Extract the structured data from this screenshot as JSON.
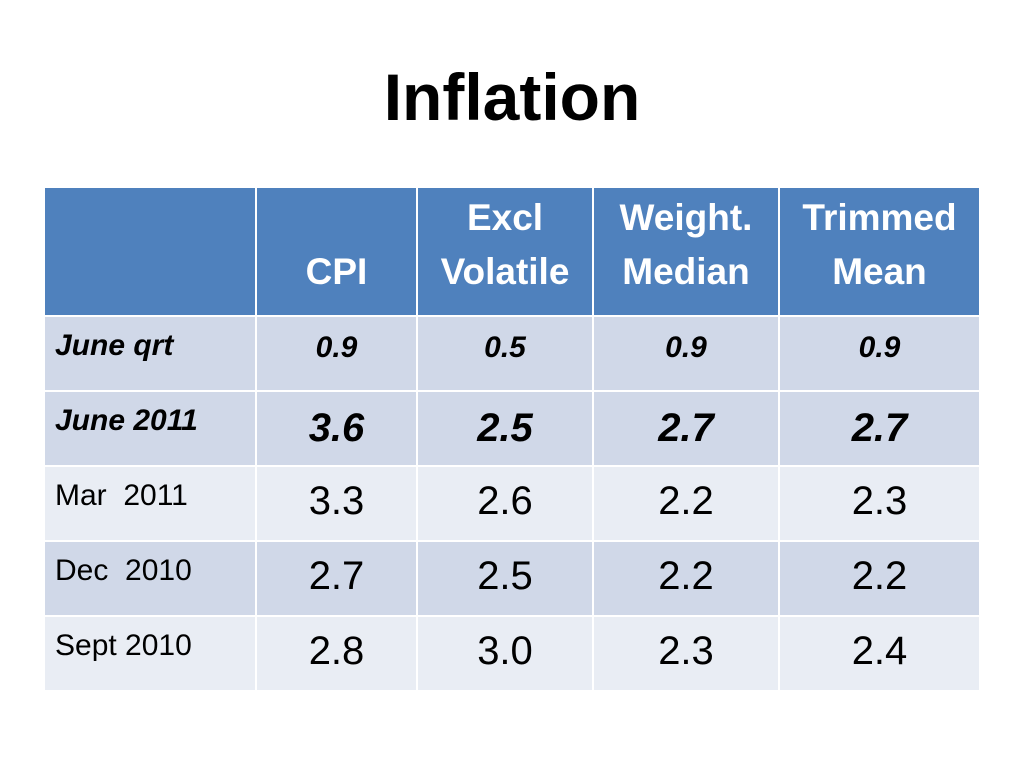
{
  "slide": {
    "title": "Inflation"
  },
  "table": {
    "headers": [
      [],
      [
        "",
        "CPI"
      ],
      [
        "Excl",
        "Volatile"
      ],
      [
        "Weight.",
        "Median"
      ],
      [
        "Trimmed",
        "Mean"
      ]
    ],
    "rows": [
      {
        "label": "June qrt",
        "values": [
          "0.9",
          "0.5",
          "0.9",
          "0.9"
        ]
      },
      {
        "label": "June 2011",
        "values": [
          "3.6",
          "2.5",
          "2.7",
          "2.7"
        ]
      },
      {
        "label": "Mar  2011",
        "values": [
          "3.3",
          "2.6",
          "2.2",
          "2.3"
        ]
      },
      {
        "label": "Dec  2010",
        "values": [
          "2.7",
          "2.5",
          "2.2",
          "2.2"
        ]
      },
      {
        "label": "Sept 2010",
        "values": [
          "2.8",
          "3.0",
          "2.3",
          "2.4"
        ]
      }
    ]
  },
  "colors": {
    "header_bg": "#4f81bd",
    "row_dark": "#d0d8e8",
    "row_light": "#e9edf4"
  }
}
